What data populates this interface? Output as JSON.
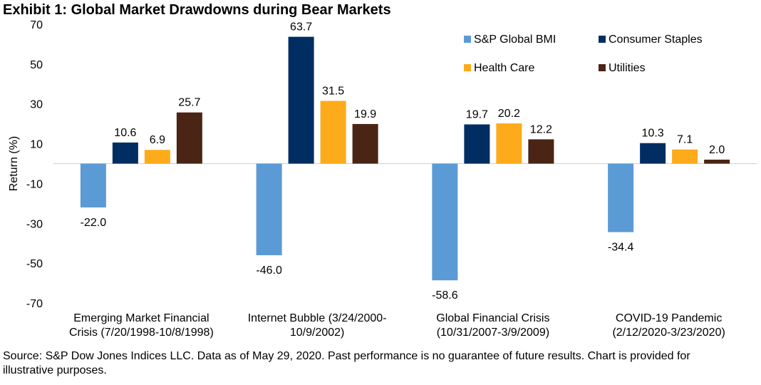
{
  "title": "Exhibit 1: Global Market Drawdowns during Bear Markets",
  "footnote": "Source: S&P Dow Jones Indices LLC. Data as of May 29, 2020. Past performance is no guarantee of future results. Chart is provided for illustrative purposes.",
  "chart_data": {
    "type": "bar",
    "ylabel": "Return (%)",
    "ylim": [
      -70,
      70
    ],
    "yticks": [
      70,
      50,
      30,
      10,
      -10,
      -30,
      -50,
      -70
    ],
    "categories": [
      [
        "Emerging Market Financial",
        "Crisis (7/20/1998-10/8/1998)"
      ],
      [
        "Internet Bubble (3/24/2000-",
        "10/9/2002)"
      ],
      [
        "Global Financial Crisis",
        "(10/31/2007-3/9/2009)"
      ],
      [
        "COVID-19 Pandemic",
        "(2/12/2020-3/23/2020)"
      ]
    ],
    "series": [
      {
        "name": "S&P Global BMI",
        "color": "#5b9bd5",
        "values": [
          -22.0,
          -46.0,
          -58.6,
          -34.4
        ],
        "labels": [
          "-22.0",
          "-46.0",
          "-58.6",
          "-34.4"
        ]
      },
      {
        "name": "Consumer Staples",
        "color": "#002d62",
        "values": [
          10.6,
          63.7,
          19.7,
          10.3
        ],
        "labels": [
          "10.6",
          "63.7",
          "19.7",
          "10.3"
        ]
      },
      {
        "name": "Health Care",
        "color": "#fdab1a",
        "values": [
          6.9,
          31.5,
          20.2,
          7.1
        ],
        "labels": [
          "6.9",
          "31.5",
          "20.2",
          "7.1"
        ]
      },
      {
        "name": "Utilities",
        "color": "#4a2414",
        "values": [
          25.7,
          19.9,
          12.2,
          2.0
        ],
        "labels": [
          "25.7",
          "19.9",
          "12.2",
          "2.0"
        ]
      }
    ],
    "legend_position": "top-right",
    "grid": false
  }
}
